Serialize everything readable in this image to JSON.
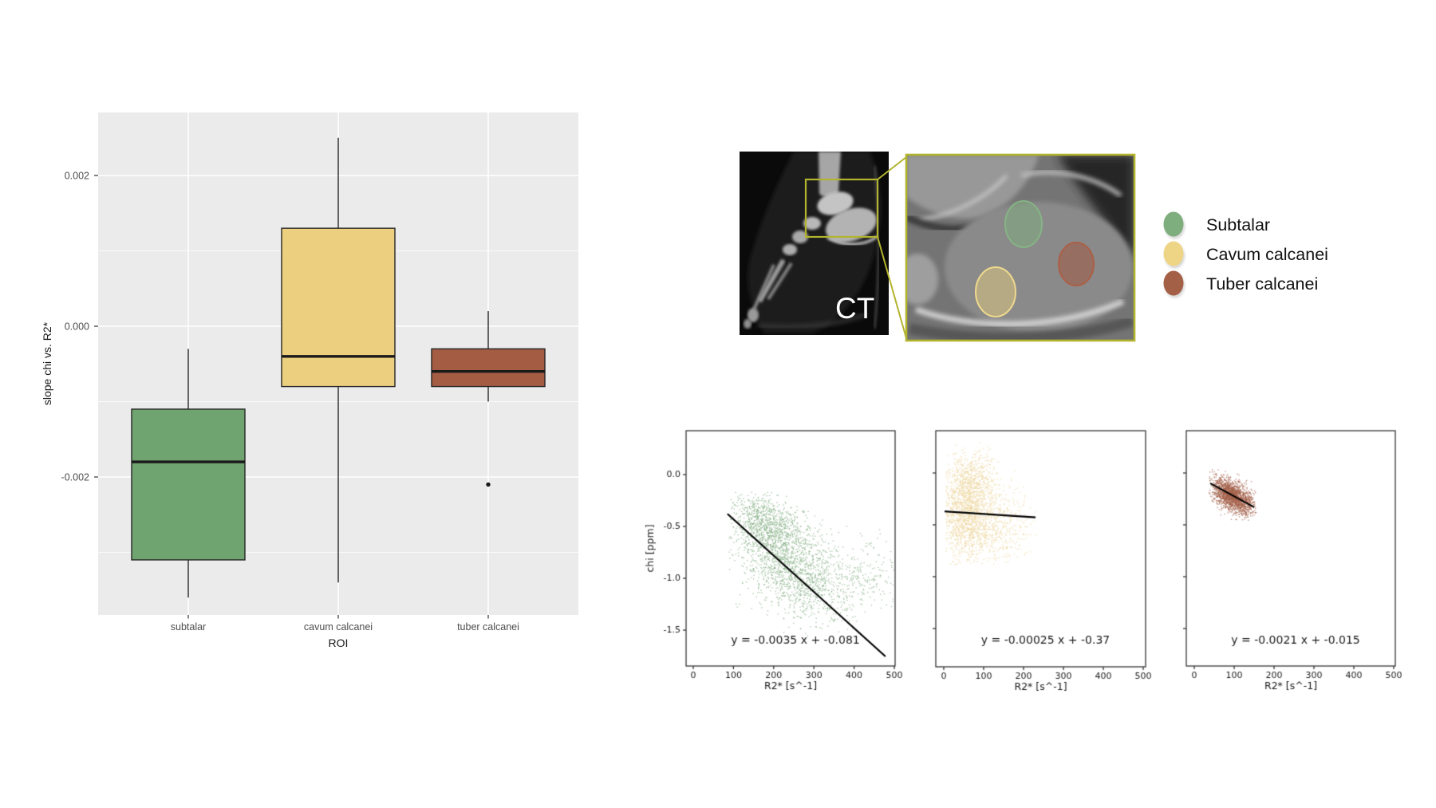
{
  "page": {
    "background": "#ffffff"
  },
  "ct_figure": {
    "label": "CT",
    "callout_color": "#b2b42e",
    "legend": [
      {
        "label": "Subtalar",
        "color": "#7fae7e"
      },
      {
        "label": "Cavum calcanei",
        "color": "#eed586"
      },
      {
        "label": "Tuber calcanei",
        "color": "#a45f47"
      }
    ]
  },
  "chart_data": [
    {
      "type": "box",
      "title": "",
      "xlabel": "ROI",
      "ylabel": "slope chi vs. R2*",
      "panel_background": "#ebebeb",
      "grid": "on",
      "categories": [
        "subtalar",
        "cavum calcanei",
        "tuber calcanei"
      ],
      "ytick_values": [
        0.002,
        0.0,
        -0.002
      ],
      "ytick_labels": [
        "0.002",
        "0.000",
        "-0.002"
      ],
      "minor_ytick_values": [
        0.001,
        -0.001,
        -0.003
      ],
      "ylim": [
        -0.0038,
        0.0028
      ],
      "boxes": [
        {
          "label": "subtalar",
          "color": "#6fa370",
          "whisker_low": -0.0036,
          "q1": -0.0031,
          "median": -0.0018,
          "q3": -0.0011,
          "whisker_high": -0.0003,
          "outliers": []
        },
        {
          "label": "cavum calcanei",
          "color": "#ecd07f",
          "whisker_low": -0.0034,
          "q1": -0.0008,
          "median": -0.0004,
          "q3": 0.0013,
          "whisker_high": 0.0025,
          "outliers": []
        },
        {
          "label": "tuber calcanei",
          "color": "#a45c43",
          "whisker_low": -0.001,
          "q1": -0.0008,
          "median": -0.0006,
          "q3": -0.0003,
          "whisker_high": 0.0002,
          "outliers": [
            -0.0021
          ]
        }
      ]
    },
    {
      "type": "scatter",
      "series_name": "subtalar",
      "point_color": "#84ad84",
      "line_color": "#000000",
      "equation": "y = -0.0035 x + -0.081",
      "regression": {
        "slope": -0.0035,
        "intercept": -0.081,
        "x_start": 85,
        "x_end": 478
      },
      "xlabel": "R2* [s^-1]",
      "ylabel": "chi [ppm]",
      "xticks": [
        0,
        100,
        200,
        300,
        400,
        500
      ],
      "yticks": [
        0.0,
        -0.5,
        -1.0,
        -1.5
      ],
      "ytick_labels": [
        "0.0",
        "-0.5",
        "-1.0",
        "-1.5"
      ],
      "xlim": [
        -18,
        502
      ],
      "ylim": [
        -1.85,
        0.42
      ],
      "x_range": [
        88,
        498
      ],
      "y_range": [
        -1.55,
        -0.16
      ],
      "clusters": [
        {
          "n": 1700,
          "cx": 245,
          "cy": -0.88,
          "sx": 70,
          "sy": 0.26,
          "rho": -0.5
        },
        {
          "n": 700,
          "cx": 178,
          "cy": -0.45,
          "sx": 40,
          "sy": 0.13,
          "rho": -0.3
        },
        {
          "n": 220,
          "cx": 420,
          "cy": -0.95,
          "sx": 50,
          "sy": 0.17,
          "rho": 0
        }
      ]
    },
    {
      "type": "scatter",
      "series_name": "cavum calcanei",
      "point_color": "#edd59e",
      "line_color": "#000000",
      "equation": "y = -0.00025 x + -0.37",
      "regression": {
        "slope": -0.00025,
        "intercept": -0.37,
        "x_start": 2,
        "x_end": 230
      },
      "xlabel": "R2* [s^-1]",
      "ylabel": "",
      "xticks": [
        0,
        100,
        200,
        300,
        400,
        500
      ],
      "yticks": [
        0.0,
        -0.5,
        -1.0,
        -1.5
      ],
      "ytick_labels": [],
      "xlim": [
        -20,
        506
      ],
      "ylim": [
        -1.87,
        0.41
      ],
      "x_range": [
        4,
        232
      ],
      "y_range": [
        -0.88,
        0.3
      ],
      "clusters": [
        {
          "n": 1500,
          "cx": 58,
          "cy": -0.38,
          "sx": 36,
          "sy": 0.23,
          "rho": 0
        },
        {
          "n": 520,
          "cx": 128,
          "cy": -0.52,
          "sx": 46,
          "sy": 0.19,
          "rho": 0
        },
        {
          "n": 450,
          "cx": 66,
          "cy": -0.07,
          "sx": 30,
          "sy": 0.12,
          "rho": 0
        }
      ]
    },
    {
      "type": "scatter",
      "series_name": "tuber calcanei",
      "point_color": "#a4624b",
      "line_color": "#000000",
      "equation": "y = -0.0021 x + -0.015",
      "regression": {
        "slope": -0.0021,
        "intercept": -0.015,
        "x_start": 40,
        "x_end": 150
      },
      "xlabel": "R2* [s^-1]",
      "ylabel": "",
      "xticks": [
        0,
        100,
        200,
        300,
        400,
        500
      ],
      "yticks": [
        0.0,
        -0.5,
        -1.0,
        -1.5
      ],
      "ytick_labels": [],
      "xlim": [
        -20,
        504
      ],
      "ylim": [
        -1.87,
        0.41
      ],
      "x_range": [
        36,
        154
      ],
      "y_range": [
        -0.47,
        0.04
      ],
      "clusters": [
        {
          "n": 1900,
          "cx": 95,
          "cy": -0.22,
          "sx": 26,
          "sy": 0.085,
          "rho": -0.55
        }
      ]
    }
  ]
}
